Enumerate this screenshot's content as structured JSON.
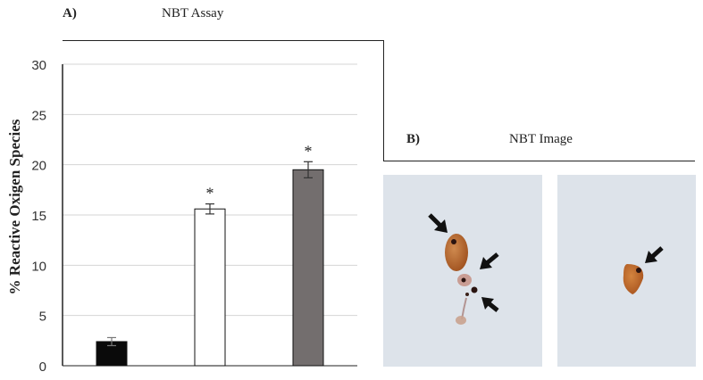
{
  "panel_a": {
    "label": "A)",
    "title": "NBT Assay"
  },
  "panel_b": {
    "label": "B)",
    "title": "NBT Image"
  },
  "colors": {
    "bar_black": "#0a0a0a",
    "bar_white": "#ffffff",
    "bar_gray": "#736e6e",
    "micrograph_bg": "#dde3ea",
    "stain": "#b5622a"
  },
  "chart_data": {
    "type": "bar",
    "title": "NBT Assay",
    "xlabel": "",
    "ylabel": "% Reactive Oxigen Species",
    "ylim": [
      0,
      30
    ],
    "yticks": [
      "0",
      "5",
      "10",
      "15",
      "20",
      "25",
      "30"
    ],
    "grid": true,
    "bars": [
      {
        "value": 2.4,
        "error": 0.4,
        "color": "#0a0a0a",
        "annotation": ""
      },
      {
        "value": 15.6,
        "error": 0.5,
        "color": "#ffffff",
        "annotation": "*"
      },
      {
        "value": 19.5,
        "error": 0.8,
        "color": "#736e6e",
        "annotation": "*"
      }
    ]
  }
}
